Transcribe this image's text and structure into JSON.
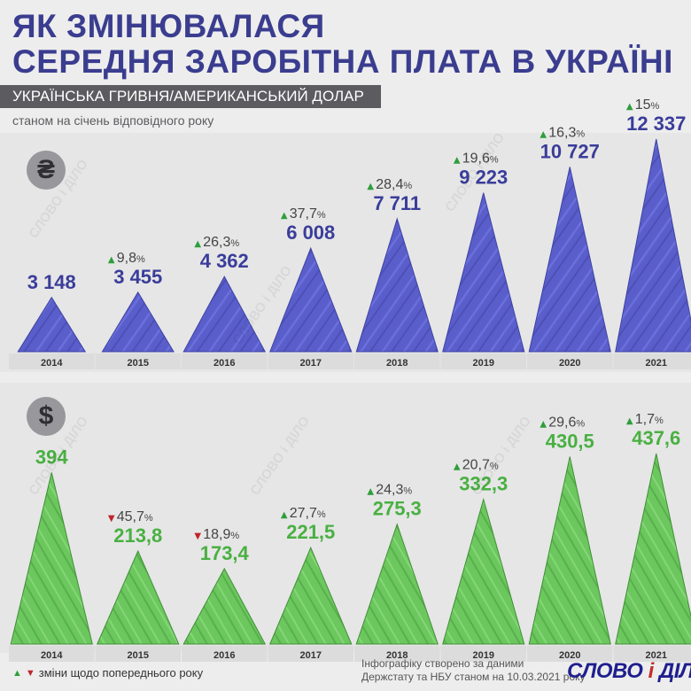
{
  "title": {
    "line1": "ЯК ЗМІНЮВАЛАСЯ",
    "line2": "СЕРЕДНЯ ЗАРОБІТНА ПЛАТА В УКРАЇНІ"
  },
  "band": "УКРАЇНСЬКА ГРИВНЯ/АМЕРИКАНСЬКИЙ ДОЛАР",
  "subtitle": "станом на січень відповідного року",
  "currency_symbols": {
    "uah": "₴",
    "usd": "$"
  },
  "watermark": "СЛОВО і ДІЛО",
  "colors": {
    "uah_fill": "#5a5ecb",
    "uah_value": "#3a3d9a",
    "usd_fill": "#6cc75e",
    "usd_value": "#49b042",
    "up": "#2e9e3a",
    "down": "#c0242a",
    "year_box": "#dcdcdc",
    "year_text": "#333333"
  },
  "chart_data": [
    {
      "type": "bar",
      "title": "Українська гривня",
      "currency": "UAH",
      "categories": [
        "2014",
        "2015",
        "2016",
        "2017",
        "2018",
        "2019",
        "2020",
        "2021"
      ],
      "values": [
        3148,
        3455,
        4362,
        6008,
        7711,
        9223,
        10727,
        12337
      ],
      "value_labels": [
        "3 148",
        "3 455",
        "4 362",
        "6 008",
        "7 711",
        "9 223",
        "10 727",
        "12 337"
      ],
      "changes": [
        null,
        "9,8",
        "26,3",
        "37,7",
        "28,4",
        "19,6",
        "16,3",
        "15"
      ],
      "change_dirs": [
        null,
        "up",
        "up",
        "up",
        "up",
        "up",
        "up",
        "up"
      ],
      "ylim": [
        0,
        12337
      ]
    },
    {
      "type": "bar",
      "title": "Американський долар",
      "currency": "USD",
      "categories": [
        "2014",
        "2015",
        "2016",
        "2017",
        "2018",
        "2019",
        "2020",
        "2021"
      ],
      "values": [
        394,
        213.8,
        173.4,
        221.5,
        275.3,
        332.3,
        430.5,
        437.6
      ],
      "value_labels": [
        "394",
        "213,8",
        "173,4",
        "221,5",
        "275,3",
        "332,3",
        "430,5",
        "437,6"
      ],
      "changes": [
        null,
        "45,7",
        "18,9",
        "27,7",
        "24,3",
        "20,7",
        "29,6",
        "1,7"
      ],
      "change_dirs": [
        null,
        "down",
        "down",
        "up",
        "up",
        "up",
        "up",
        "up"
      ],
      "ylim": [
        0,
        437.6
      ]
    }
  ],
  "percent_sign": "%",
  "footer": {
    "legend": "зміни щодо попереднього року",
    "source_line1": "Інфографіку створено за даними",
    "source_line2": "Держстату та НБУ станом на 10.03.2021 року",
    "logo_left": "СЛОВО",
    "logo_mid": "і",
    "logo_right": "ДІЛО"
  }
}
